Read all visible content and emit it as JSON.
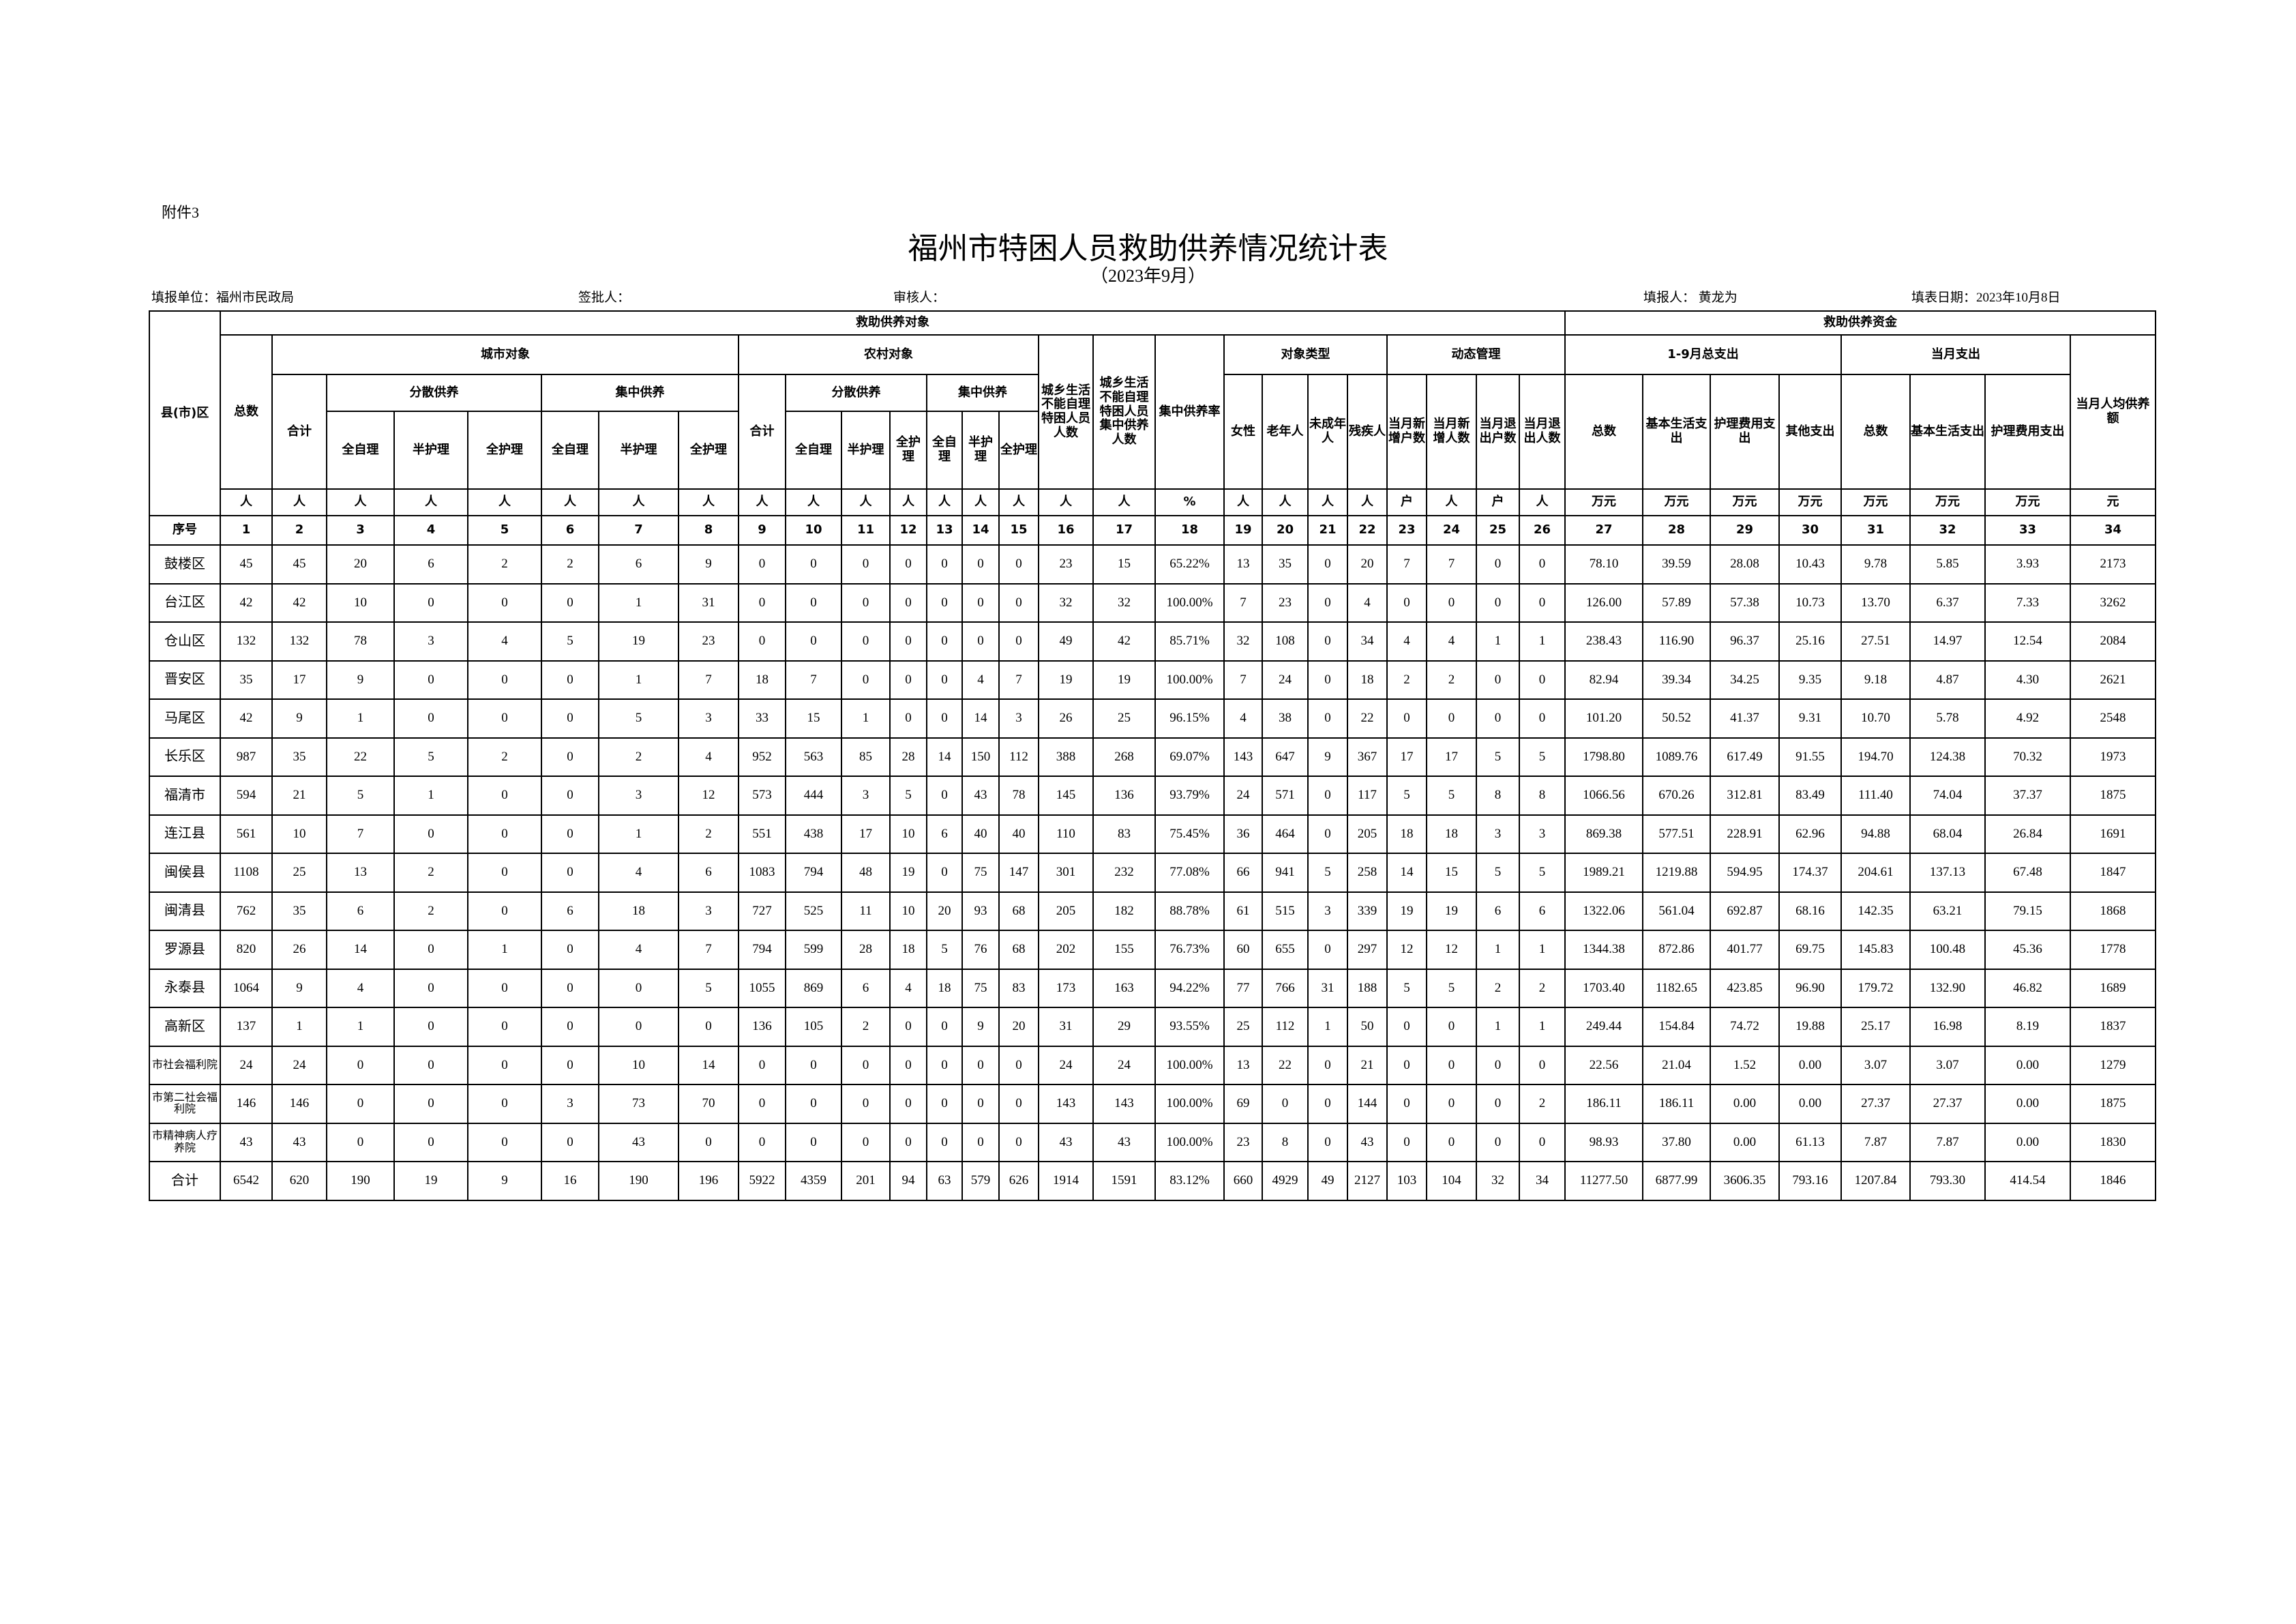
{
  "attachment": "附件3",
  "title": "福州市特困人员救助供养情况统计表",
  "subtitle": "（2023年9月）",
  "info": {
    "unit": "填报单位：福州市民政局",
    "approver": "签批人：",
    "reviewer": "审核人：",
    "filler": "填报人：  黄龙为",
    "date": "填表日期：2023年10月8日"
  },
  "headers": {
    "region": "县(市)区",
    "objects": "救助供养对象",
    "funds": "救助供养资金",
    "total": "总数",
    "urban": "城市对象",
    "rural": "农村对象",
    "cannot_self_care": "城乡生活不能自理特困人员人数",
    "cannot_self_care_central": "城乡生活不能自理特困人员集中供养人数",
    "central_rate": "集中供养率",
    "type": "对象类型",
    "dynamic": "动态管理",
    "ytd": "1-9月总支出",
    "month": "当月支出",
    "per_capita": "当月人均供养额",
    "subtotal": "合计",
    "dispersed": "分散供养",
    "central": "集中供养",
    "female": "女性",
    "elderly": "老年人",
    "minor": "未成年人",
    "disabled": "残疾人",
    "new_households": "当月新增户数",
    "new_people": "当月新增人数",
    "exit_households": "当月退出户数",
    "exit_people": "当月退出人数",
    "exp_total": "总数",
    "exp_basic": "基本生活支出",
    "exp_care": "护理费用支出",
    "exp_other": "其他支出",
    "full_self": "全自理",
    "half_care": "半护理",
    "full_care": "全护理",
    "seq": "序号"
  },
  "units": [
    "人",
    "人",
    "人",
    "人",
    "人",
    "人",
    "人",
    "人",
    "人",
    "人",
    "人",
    "人",
    "人",
    "人",
    "人",
    "人",
    "人",
    "%",
    "人",
    "人",
    "人",
    "人",
    "户",
    "人",
    "户",
    "人",
    "万元",
    "万元",
    "万元",
    "万元",
    "万元",
    "万元",
    "万元",
    "元"
  ],
  "seq_numbers": [
    "1",
    "2",
    "3",
    "4",
    "5",
    "6",
    "7",
    "8",
    "9",
    "10",
    "11",
    "12",
    "13",
    "14",
    "15",
    "16",
    "17",
    "18",
    "19",
    "20",
    "21",
    "22",
    "23",
    "24",
    "25",
    "26",
    "27",
    "28",
    "29",
    "30",
    "31",
    "32",
    "33",
    "34"
  ],
  "rows": [
    {
      "name": "鼓楼区",
      "values": [
        "45",
        "45",
        "20",
        "6",
        "2",
        "2",
        "6",
        "9",
        "0",
        "0",
        "0",
        "0",
        "0",
        "0",
        "0",
        "23",
        "15",
        "65.22%",
        "13",
        "35",
        "0",
        "20",
        "7",
        "7",
        "0",
        "0",
        "78.10",
        "39.59",
        "28.08",
        "10.43",
        "9.78",
        "5.85",
        "3.93",
        "2173"
      ]
    },
    {
      "name": "台江区",
      "values": [
        "42",
        "42",
        "10",
        "0",
        "0",
        "0",
        "1",
        "31",
        "0",
        "0",
        "0",
        "0",
        "0",
        "0",
        "0",
        "32",
        "32",
        "100.00%",
        "7",
        "23",
        "0",
        "4",
        "0",
        "0",
        "0",
        "0",
        "126.00",
        "57.89",
        "57.38",
        "10.73",
        "13.70",
        "6.37",
        "7.33",
        "3262"
      ]
    },
    {
      "name": "仓山区",
      "values": [
        "132",
        "132",
        "78",
        "3",
        "4",
        "5",
        "19",
        "23",
        "0",
        "0",
        "0",
        "0",
        "0",
        "0",
        "0",
        "49",
        "42",
        "85.71%",
        "32",
        "108",
        "0",
        "34",
        "4",
        "4",
        "1",
        "1",
        "238.43",
        "116.90",
        "96.37",
        "25.16",
        "27.51",
        "14.97",
        "12.54",
        "2084"
      ]
    },
    {
      "name": "晋安区",
      "values": [
        "35",
        "17",
        "9",
        "0",
        "0",
        "0",
        "1",
        "7",
        "18",
        "7",
        "0",
        "0",
        "0",
        "4",
        "7",
        "19",
        "19",
        "100.00%",
        "7",
        "24",
        "0",
        "18",
        "2",
        "2",
        "0",
        "0",
        "82.94",
        "39.34",
        "34.25",
        "9.35",
        "9.18",
        "4.87",
        "4.30",
        "2621"
      ]
    },
    {
      "name": "马尾区",
      "values": [
        "42",
        "9",
        "1",
        "0",
        "0",
        "0",
        "5",
        "3",
        "33",
        "15",
        "1",
        "0",
        "0",
        "14",
        "3",
        "26",
        "25",
        "96.15%",
        "4",
        "38",
        "0",
        "22",
        "0",
        "0",
        "0",
        "0",
        "101.20",
        "50.52",
        "41.37",
        "9.31",
        "10.70",
        "5.78",
        "4.92",
        "2548"
      ]
    },
    {
      "name": "长乐区",
      "values": [
        "987",
        "35",
        "22",
        "5",
        "2",
        "0",
        "2",
        "4",
        "952",
        "563",
        "85",
        "28",
        "14",
        "150",
        "112",
        "388",
        "268",
        "69.07%",
        "143",
        "647",
        "9",
        "367",
        "17",
        "17",
        "5",
        "5",
        "1798.80",
        "1089.76",
        "617.49",
        "91.55",
        "194.70",
        "124.38",
        "70.32",
        "1973"
      ]
    },
    {
      "name": "福清市",
      "values": [
        "594",
        "21",
        "5",
        "1",
        "0",
        "0",
        "3",
        "12",
        "573",
        "444",
        "3",
        "5",
        "0",
        "43",
        "78",
        "145",
        "136",
        "93.79%",
        "24",
        "571",
        "0",
        "117",
        "5",
        "5",
        "8",
        "8",
        "1066.56",
        "670.26",
        "312.81",
        "83.49",
        "111.40",
        "74.04",
        "37.37",
        "1875"
      ]
    },
    {
      "name": "连江县",
      "values": [
        "561",
        "10",
        "7",
        "0",
        "0",
        "0",
        "1",
        "2",
        "551",
        "438",
        "17",
        "10",
        "6",
        "40",
        "40",
        "110",
        "83",
        "75.45%",
        "36",
        "464",
        "0",
        "205",
        "18",
        "18",
        "3",
        "3",
        "869.38",
        "577.51",
        "228.91",
        "62.96",
        "94.88",
        "68.04",
        "26.84",
        "1691"
      ]
    },
    {
      "name": "闽侯县",
      "values": [
        "1108",
        "25",
        "13",
        "2",
        "0",
        "0",
        "4",
        "6",
        "1083",
        "794",
        "48",
        "19",
        "0",
        "75",
        "147",
        "301",
        "232",
        "77.08%",
        "66",
        "941",
        "5",
        "258",
        "14",
        "15",
        "5",
        "5",
        "1989.21",
        "1219.88",
        "594.95",
        "174.37",
        "204.61",
        "137.13",
        "67.48",
        "1847"
      ]
    },
    {
      "name": "闽清县",
      "values": [
        "762",
        "35",
        "6",
        "2",
        "0",
        "6",
        "18",
        "3",
        "727",
        "525",
        "11",
        "10",
        "20",
        "93",
        "68",
        "205",
        "182",
        "88.78%",
        "61",
        "515",
        "3",
        "339",
        "19",
        "19",
        "6",
        "6",
        "1322.06",
        "561.04",
        "692.87",
        "68.16",
        "142.35",
        "63.21",
        "79.15",
        "1868"
      ]
    },
    {
      "name": "罗源县",
      "values": [
        "820",
        "26",
        "14",
        "0",
        "1",
        "0",
        "4",
        "7",
        "794",
        "599",
        "28",
        "18",
        "5",
        "76",
        "68",
        "202",
        "155",
        "76.73%",
        "60",
        "655",
        "0",
        "297",
        "12",
        "12",
        "1",
        "1",
        "1344.38",
        "872.86",
        "401.77",
        "69.75",
        "145.83",
        "100.48",
        "45.36",
        "1778"
      ]
    },
    {
      "name": "永泰县",
      "values": [
        "1064",
        "9",
        "4",
        "0",
        "0",
        "0",
        "0",
        "5",
        "1055",
        "869",
        "6",
        "4",
        "18",
        "75",
        "83",
        "173",
        "163",
        "94.22%",
        "77",
        "766",
        "31",
        "188",
        "5",
        "5",
        "2",
        "2",
        "1703.40",
        "1182.65",
        "423.85",
        "96.90",
        "179.72",
        "132.90",
        "46.82",
        "1689"
      ]
    },
    {
      "name": "高新区",
      "values": [
        "137",
        "1",
        "1",
        "0",
        "0",
        "0",
        "0",
        "0",
        "136",
        "105",
        "2",
        "0",
        "0",
        "9",
        "20",
        "31",
        "29",
        "93.55%",
        "25",
        "112",
        "1",
        "50",
        "0",
        "0",
        "1",
        "1",
        "249.44",
        "154.84",
        "74.72",
        "19.88",
        "25.17",
        "16.98",
        "8.19",
        "1837"
      ]
    },
    {
      "name": "市社会福利院",
      "values": [
        "24",
        "24",
        "0",
        "0",
        "0",
        "0",
        "10",
        "14",
        "0",
        "0",
        "0",
        "0",
        "0",
        "0",
        "0",
        "24",
        "24",
        "100.00%",
        "13",
        "22",
        "0",
        "21",
        "0",
        "0",
        "0",
        "0",
        "22.56",
        "21.04",
        "1.52",
        "0.00",
        "3.07",
        "3.07",
        "0.00",
        "1279"
      ]
    },
    {
      "name": "市第二社会福利院",
      "values": [
        "146",
        "146",
        "0",
        "0",
        "0",
        "3",
        "73",
        "70",
        "0",
        "0",
        "0",
        "0",
        "0",
        "0",
        "0",
        "143",
        "143",
        "100.00%",
        "69",
        "0",
        "0",
        "144",
        "0",
        "0",
        "0",
        "2",
        "186.11",
        "186.11",
        "0.00",
        "0.00",
        "27.37",
        "27.37",
        "0.00",
        "1875"
      ]
    },
    {
      "name": "市精神病人疗养院",
      "values": [
        "43",
        "43",
        "0",
        "0",
        "0",
        "0",
        "43",
        "0",
        "0",
        "0",
        "0",
        "0",
        "0",
        "0",
        "0",
        "43",
        "43",
        "100.00%",
        "23",
        "8",
        "0",
        "43",
        "0",
        "0",
        "0",
        "0",
        "98.93",
        "37.80",
        "0.00",
        "61.13",
        "7.87",
        "7.87",
        "0.00",
        "1830"
      ]
    },
    {
      "name": "合计",
      "values": [
        "6542",
        "620",
        "190",
        "19",
        "9",
        "16",
        "190",
        "196",
        "5922",
        "4359",
        "201",
        "94",
        "63",
        "579",
        "626",
        "1914",
        "1591",
        "83.12%",
        "660",
        "4929",
        "49",
        "2127",
        "103",
        "104",
        "32",
        "34",
        "11277.50",
        "6877.99",
        "3606.35",
        "793.16",
        "1207.84",
        "793.30",
        "414.54",
        "1846"
      ]
    }
  ]
}
